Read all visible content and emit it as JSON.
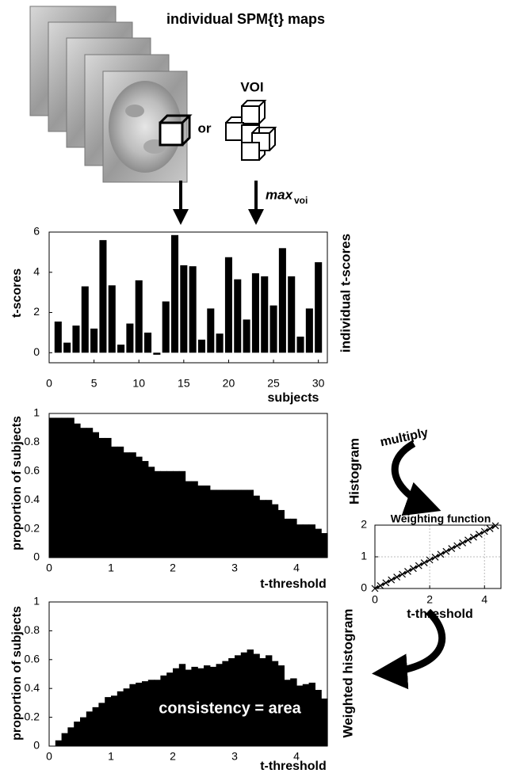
{
  "diagram": {
    "title": "individual SPM{t} maps",
    "voi": "VOI",
    "or": "or",
    "max": "max",
    "max_subscript": "voi",
    "multiply": "multiply"
  },
  "chart_data": [
    {
      "type": "bar",
      "ylabel": "t-scores",
      "xlabel": "subjects",
      "side_label": "individual t-scores",
      "x": [
        1,
        2,
        3,
        4,
        5,
        6,
        7,
        8,
        9,
        10,
        11,
        12,
        13,
        14,
        15,
        16,
        17,
        18,
        19,
        20,
        21,
        22,
        23,
        24,
        25,
        26,
        27,
        28,
        29,
        30
      ],
      "values": [
        1.55,
        0.5,
        1.35,
        3.3,
        1.2,
        5.6,
        3.35,
        0.4,
        1.45,
        3.6,
        1.0,
        -0.1,
        2.55,
        5.85,
        4.35,
        4.3,
        0.65,
        2.2,
        0.95,
        4.75,
        3.65,
        1.65,
        3.95,
        3.8,
        2.35,
        5.2,
        3.8,
        0.8,
        2.2,
        4.5
      ],
      "color": "#000000",
      "xlim": [
        0,
        31
      ],
      "ylim": [
        -0.5,
        6
      ],
      "xticks": [
        0,
        5,
        10,
        15,
        20,
        25,
        30
      ],
      "yticks": [
        0,
        2,
        4,
        6
      ]
    },
    {
      "type": "step-area",
      "ylabel": "proportion of subjects",
      "xlabel": "t-threshold",
      "side_label": "Histogram",
      "x": [
        0,
        0.1,
        0.2,
        0.3,
        0.4,
        0.5,
        0.6,
        0.7,
        0.8,
        0.9,
        1.0,
        1.1,
        1.2,
        1.3,
        1.4,
        1.5,
        1.6,
        1.7,
        1.8,
        1.9,
        2.0,
        2.1,
        2.2,
        2.3,
        2.4,
        2.5,
        2.6,
        2.7,
        2.8,
        2.9,
        3.0,
        3.1,
        3.2,
        3.3,
        3.4,
        3.5,
        3.6,
        3.7,
        3.8,
        3.9,
        4.0,
        4.1,
        4.2,
        4.3,
        4.4
      ],
      "values": [
        0.97,
        0.97,
        0.97,
        0.97,
        0.93,
        0.9,
        0.9,
        0.87,
        0.83,
        0.83,
        0.77,
        0.77,
        0.73,
        0.73,
        0.7,
        0.67,
        0.63,
        0.6,
        0.6,
        0.6,
        0.6,
        0.6,
        0.53,
        0.53,
        0.5,
        0.5,
        0.47,
        0.47,
        0.47,
        0.47,
        0.47,
        0.47,
        0.47,
        0.43,
        0.4,
        0.4,
        0.37,
        0.33,
        0.27,
        0.27,
        0.23,
        0.23,
        0.23,
        0.2,
        0.17
      ],
      "color": "#000000",
      "xlim": [
        0,
        4.5
      ],
      "ylim": [
        0,
        1
      ],
      "xticks": [
        0,
        1,
        2,
        3,
        4
      ],
      "yticks": [
        0,
        0.2,
        0.4,
        0.6,
        0.8,
        1
      ]
    },
    {
      "type": "line",
      "title": "Weighting function",
      "xlabel": "t-threshold",
      "x": [
        0,
        0.2,
        0.4,
        0.6,
        0.8,
        1.0,
        1.2,
        1.4,
        1.6,
        1.8,
        2.0,
        2.2,
        2.4,
        2.6,
        2.8,
        3.0,
        3.2,
        3.4,
        3.6,
        3.8,
        4.0,
        4.2,
        4.4
      ],
      "values": [
        0,
        0.09,
        0.18,
        0.27,
        0.36,
        0.45,
        0.54,
        0.63,
        0.72,
        0.81,
        0.9,
        0.99,
        1.08,
        1.17,
        1.26,
        1.35,
        1.44,
        1.53,
        1.62,
        1.71,
        1.8,
        1.89,
        1.98
      ],
      "color": "#000000",
      "marker": "x",
      "xlim": [
        0,
        4.6
      ],
      "ylim": [
        0,
        2
      ],
      "xticks": [
        0,
        2,
        4
      ],
      "yticks": [
        0,
        1,
        2
      ],
      "grid": true
    },
    {
      "type": "step-area",
      "ylabel": "proportion of subjects",
      "xlabel": "t-threshold",
      "side_label": "Weighted histogram",
      "annotation": "consistency = area",
      "x": [
        0,
        0.1,
        0.2,
        0.3,
        0.4,
        0.5,
        0.6,
        0.7,
        0.8,
        0.9,
        1.0,
        1.1,
        1.2,
        1.3,
        1.4,
        1.5,
        1.6,
        1.7,
        1.8,
        1.9,
        2.0,
        2.1,
        2.2,
        2.3,
        2.4,
        2.5,
        2.6,
        2.7,
        2.8,
        2.9,
        3.0,
        3.1,
        3.2,
        3.3,
        3.4,
        3.5,
        3.6,
        3.7,
        3.8,
        3.9,
        4.0,
        4.1,
        4.2,
        4.3,
        4.4
      ],
      "values": [
        0,
        0.04,
        0.09,
        0.13,
        0.17,
        0.2,
        0.24,
        0.27,
        0.3,
        0.34,
        0.35,
        0.38,
        0.4,
        0.43,
        0.44,
        0.45,
        0.46,
        0.46,
        0.49,
        0.51,
        0.54,
        0.57,
        0.53,
        0.55,
        0.54,
        0.56,
        0.55,
        0.57,
        0.59,
        0.61,
        0.63,
        0.65,
        0.67,
        0.64,
        0.61,
        0.63,
        0.59,
        0.56,
        0.46,
        0.47,
        0.42,
        0.43,
        0.44,
        0.39,
        0.33
      ],
      "color": "#000000",
      "xlim": [
        0,
        4.5
      ],
      "ylim": [
        0,
        1
      ],
      "xticks": [
        0,
        1,
        2,
        3,
        4
      ],
      "yticks": [
        0,
        0.2,
        0.4,
        0.6,
        0.8,
        1
      ]
    }
  ]
}
